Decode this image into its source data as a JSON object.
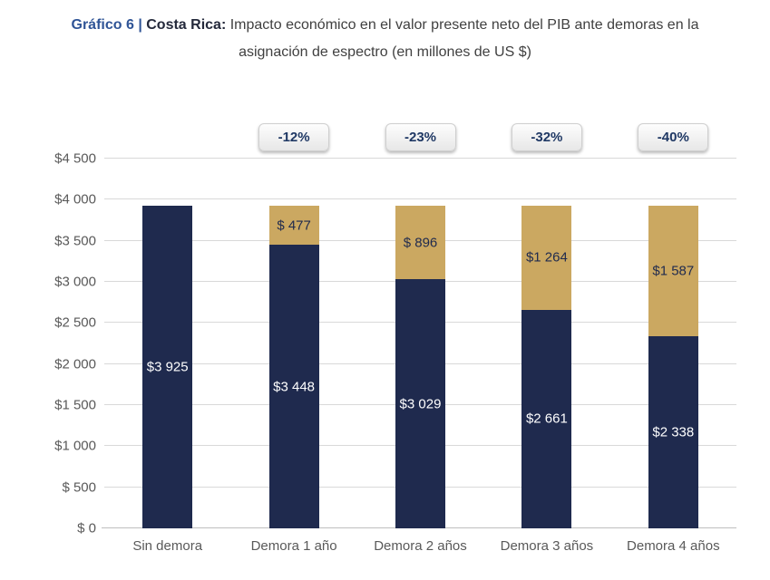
{
  "title": {
    "graph_label": "Gráfico 6",
    "separator": "|",
    "region_label": "Costa Rica:",
    "line1_text": "Impacto económico en el valor presente neto del PIB ante demoras en la",
    "line2_text": "asignación de espectro (en millones de US $)"
  },
  "colors": {
    "navy": "#1F2A4E",
    "gold": "#CBA861",
    "title_blue": "#2F5496",
    "title_dark": "#24293B",
    "axis_text": "#595959",
    "gridline": "#D9D9D9",
    "axis_line": "#BFBFBF",
    "badge_text": "#1F3864"
  },
  "chart_data": {
    "type": "bar",
    "stacked": true,
    "title": "Gráfico 6 | Costa Rica: Impacto económico en el valor presente neto del PIB ante demoras en la asignación de espectro (en millones de US $)",
    "categories": [
      "Sin demora",
      "Demora 1 año",
      "Demora 2 años",
      "Demora 3 años",
      "Demora 4 años"
    ],
    "series": [
      {
        "name": "navy",
        "color": "#1F2A4E",
        "values": [
          3925,
          3448,
          3029,
          2661,
          2338
        ],
        "labels": [
          "$3 925",
          "$3 448",
          "$3 029",
          "$2 661",
          "$2 338"
        ],
        "label_color": "#FFFFFF"
      },
      {
        "name": "gold",
        "color": "#CBA861",
        "values": [
          0,
          477,
          896,
          1264,
          1587
        ],
        "labels": [
          null,
          "$ 477",
          "$ 896",
          "$1 264",
          "$1 587"
        ],
        "label_color": "#1F2A4E"
      }
    ],
    "percent_change_badges": [
      null,
      "-12%",
      "-23%",
      "-32%",
      "-40%"
    ],
    "y_axis": {
      "min": 0,
      "max": 4500,
      "step": 500,
      "tick_labels": [
        "$ 0",
        "$ 500",
        "$1 000",
        "$1 500",
        "$2 000",
        "$2 500",
        "$3 000",
        "$3 500",
        "$4 000",
        "$4 500"
      ]
    },
    "ylim": [
      0,
      4500
    ],
    "grid": true,
    "legend": false,
    "xlabel": "",
    "ylabel": ""
  }
}
